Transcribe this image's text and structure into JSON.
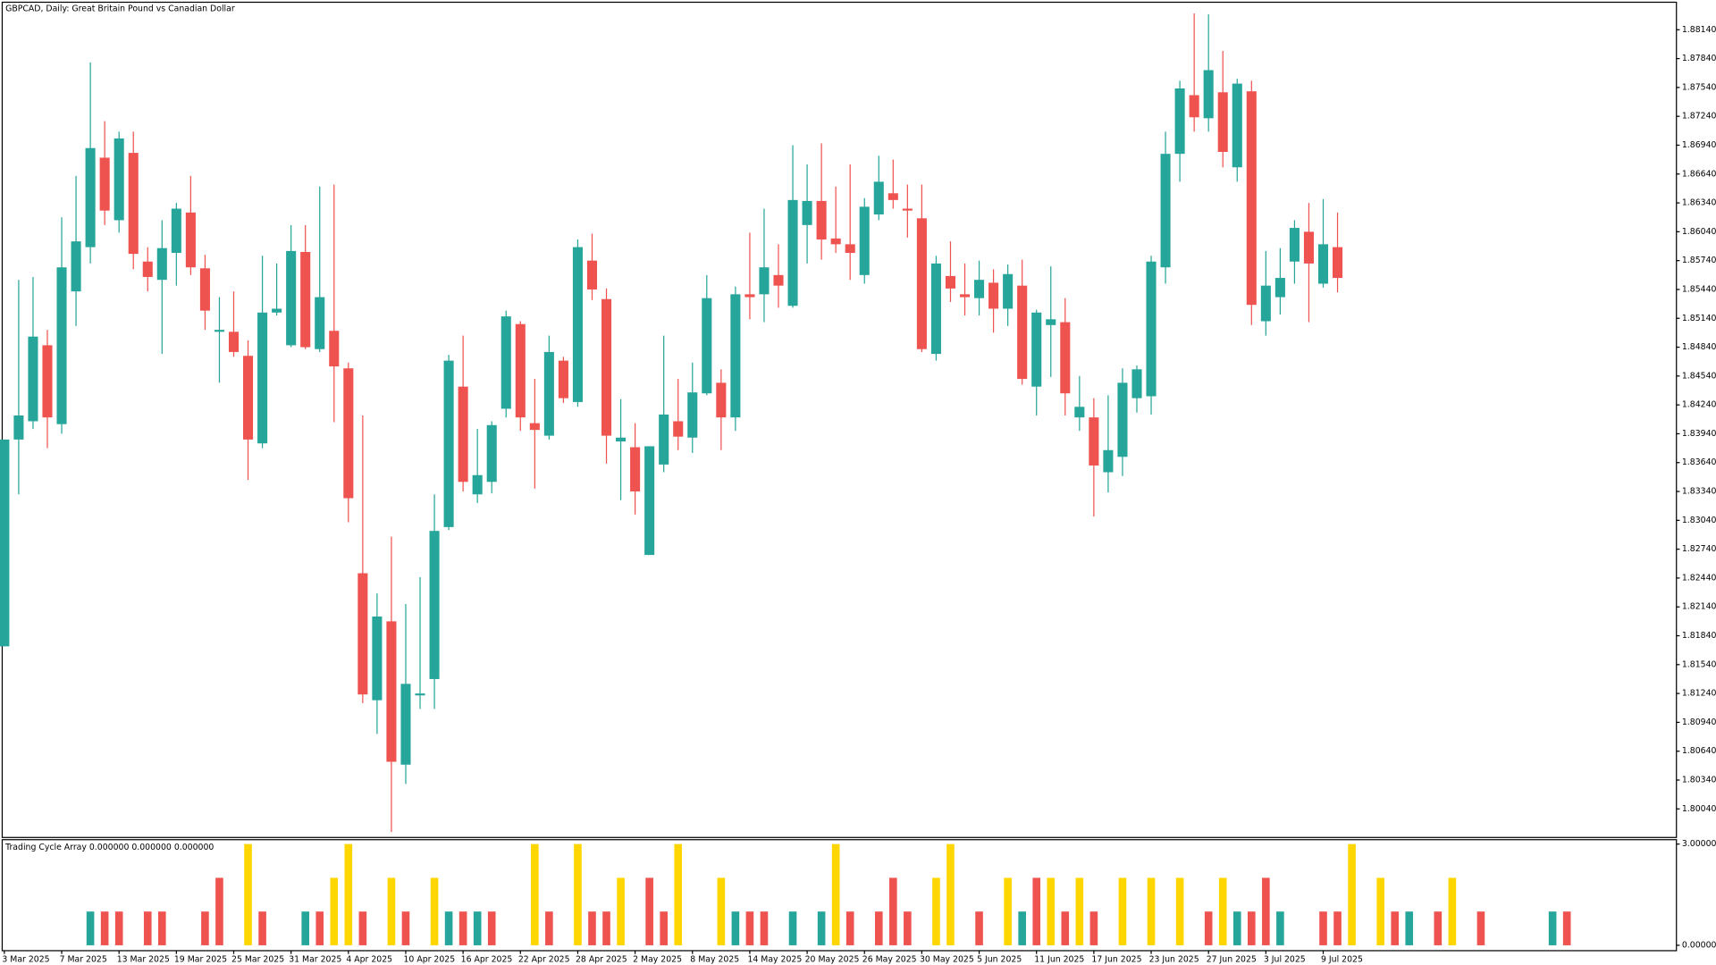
{
  "chart_data": [
    {
      "type": "candlestick",
      "title": "GBPCAD, Daily:  Great Britain Pound vs Canadian Dollar",
      "up_color": "#26a69a",
      "down_color": "#ef5350",
      "open": [
        1.8173,
        1.8388,
        1.8407,
        1.8486,
        1.8404,
        1.8542,
        1.8588,
        1.8681,
        1.8616,
        1.8686,
        1.8573,
        1.8554,
        1.8582,
        1.8624,
        1.8566,
        1.85,
        1.85,
        1.8475,
        1.8384,
        1.852,
        1.8486,
        1.8583,
        1.8482,
        1.8501,
        1.8462,
        1.8249,
        1.8117,
        1.8199,
        1.805,
        1.8122,
        1.8139,
        1.8297,
        1.8443,
        1.8331,
        1.8344,
        1.842,
        1.8508,
        1.8405,
        1.8392,
        1.847,
        1.8427,
        1.8574,
        1.8534,
        1.8386,
        1.838,
        1.8268,
        1.8362,
        1.8407,
        1.839,
        1.8436,
        1.8447,
        1.8411,
        1.8539,
        1.8539,
        1.8559,
        1.8527,
        1.8611,
        1.8636,
        1.8597,
        1.8591,
        1.8559,
        1.8622,
        1.8644,
        1.8628,
        1.8618,
        1.8477,
        1.8558,
        1.8539,
        1.8535,
        1.8551,
        1.8524,
        1.8548,
        1.8443,
        1.8507,
        1.851,
        1.8411,
        1.8411,
        1.8354,
        1.837,
        1.8431,
        1.8433,
        1.8567,
        1.8685,
        1.8746,
        1.8722,
        1.8749,
        1.8671,
        1.875,
        1.8511,
        1.8536,
        1.8573,
        1.8604,
        1.855,
        1.8588
      ],
      "high": [
        1.8388,
        1.8554,
        1.8557,
        1.8502,
        1.8619,
        1.8662,
        1.878,
        1.8719,
        1.8708,
        1.8708,
        1.8588,
        1.8616,
        1.8634,
        1.8662,
        1.858,
        1.8536,
        1.8542,
        1.8491,
        1.8579,
        1.8571,
        1.8611,
        1.8611,
        1.8651,
        1.8653,
        1.8468,
        1.8413,
        1.8228,
        1.8287,
        1.8217,
        1.8245,
        1.8331,
        1.8476,
        1.8496,
        1.8399,
        1.8407,
        1.8522,
        1.8511,
        1.8451,
        1.8496,
        1.8474,
        1.8596,
        1.8602,
        1.8545,
        1.843,
        1.8405,
        1.8381,
        1.8496,
        1.8451,
        1.8468,
        1.8559,
        1.8461,
        1.8547,
        1.8603,
        1.8628,
        1.8591,
        1.8694,
        1.8674,
        1.8696,
        1.8651,
        1.8674,
        1.8639,
        1.8683,
        1.8679,
        1.8653,
        1.8653,
        1.8579,
        1.8594,
        1.8571,
        1.8574,
        1.8565,
        1.857,
        1.8575,
        1.8523,
        1.8568,
        1.8535,
        1.8454,
        1.8431,
        1.8434,
        1.8462,
        1.8465,
        1.8579,
        1.8708,
        1.8761,
        1.8831,
        1.883,
        1.8792,
        1.8763,
        1.8761,
        1.8584,
        1.8587,
        1.8616,
        1.8634,
        1.8638,
        1.8624
      ],
      "low": [
        1.8173,
        1.8331,
        1.8399,
        1.8379,
        1.8394,
        1.8506,
        1.8571,
        1.8611,
        1.8603,
        1.8565,
        1.8542,
        1.8477,
        1.8548,
        1.8559,
        1.8502,
        1.8447,
        1.8474,
        1.8346,
        1.8379,
        1.8517,
        1.8484,
        1.8482,
        1.8479,
        1.8406,
        1.8302,
        1.8114,
        1.8082,
        1.798,
        1.803,
        1.8108,
        1.8108,
        1.8294,
        1.8334,
        1.8322,
        1.8332,
        1.8411,
        1.8397,
        1.8337,
        1.8388,
        1.8426,
        1.8422,
        1.8533,
        1.8363,
        1.8325,
        1.831,
        1.8268,
        1.8354,
        1.8377,
        1.8374,
        1.8434,
        1.8377,
        1.8397,
        1.8513,
        1.851,
        1.8525,
        1.8525,
        1.8571,
        1.8575,
        1.8582,
        1.8554,
        1.855,
        1.8616,
        1.8628,
        1.8598,
        1.8479,
        1.847,
        1.8531,
        1.8517,
        1.8517,
        1.8499,
        1.8506,
        1.8445,
        1.8413,
        1.8453,
        1.8413,
        1.8397,
        1.8308,
        1.8333,
        1.835,
        1.8416,
        1.8414,
        1.855,
        1.8656,
        1.8708,
        1.8708,
        1.8671,
        1.8656,
        1.8507,
        1.8496,
        1.8518,
        1.855,
        1.851,
        1.8546,
        1.8541
      ],
      "close": [
        1.8388,
        1.8413,
        1.8495,
        1.8411,
        1.8567,
        1.8594,
        1.8691,
        1.8626,
        1.8701,
        1.8581,
        1.8557,
        1.8587,
        1.8628,
        1.8567,
        1.8522,
        1.8502,
        1.8479,
        1.8388,
        1.852,
        1.8524,
        1.8584,
        1.8484,
        1.8536,
        1.8464,
        1.8327,
        1.8123,
        1.8204,
        1.8053,
        1.8134,
        1.8124,
        1.8293,
        1.847,
        1.8344,
        1.8351,
        1.8403,
        1.8516,
        1.8411,
        1.8398,
        1.8479,
        1.8431,
        1.8588,
        1.8544,
        1.8392,
        1.839,
        1.8334,
        1.8381,
        1.8414,
        1.8391,
        1.8437,
        1.8535,
        1.8411,
        1.8539,
        1.8536,
        1.8567,
        1.8548,
        1.8637,
        1.8636,
        1.8596,
        1.8591,
        1.8582,
        1.863,
        1.8656,
        1.8637,
        1.8626,
        1.8482,
        1.8571,
        1.8545,
        1.8536,
        1.8554,
        1.8524,
        1.856,
        1.8451,
        1.852,
        1.8513,
        1.8436,
        1.8422,
        1.8361,
        1.8377,
        1.8447,
        1.8461,
        1.8573,
        1.8685,
        1.8753,
        1.8723,
        1.8772,
        1.8687,
        1.8758,
        1.8528,
        1.8548,
        1.8556,
        1.8608,
        1.8571,
        1.8591,
        1.8556
      ],
      "xlim": [
        -0.15,
        116.64
      ],
      "xticks": [
        {
          "value": 0,
          "label": "3 Mar 2025"
        },
        {
          "value": 4,
          "label": "7 Mar 2025"
        },
        {
          "value": 8,
          "label": "13 Mar 2025"
        },
        {
          "value": 12,
          "label": "19 Mar 2025"
        },
        {
          "value": 16,
          "label": "25 Mar 2025"
        },
        {
          "value": 20,
          "label": "31 Mar 2025"
        },
        {
          "value": 24,
          "label": "4 Apr 2025"
        },
        {
          "value": 28,
          "label": "10 Apr 2025"
        },
        {
          "value": 32,
          "label": "16 Apr 2025"
        },
        {
          "value": 36,
          "label": "22 Apr 2025"
        },
        {
          "value": 40,
          "label": "28 Apr 2025"
        },
        {
          "value": 44,
          "label": "2 May 2025"
        },
        {
          "value": 48,
          "label": "8 May 2025"
        },
        {
          "value": 52,
          "label": "14 May 2025"
        },
        {
          "value": 56,
          "label": "20 May 2025"
        },
        {
          "value": 60,
          "label": "26 May 2025"
        },
        {
          "value": 64,
          "label": "30 May 2025"
        },
        {
          "value": 68,
          "label": "5 Jun 2025"
        },
        {
          "value": 72,
          "label": "11 Jun 2025"
        },
        {
          "value": 76,
          "label": "17 Jun 2025"
        },
        {
          "value": 80,
          "label": "23 Jun 2025"
        },
        {
          "value": 84,
          "label": "27 Jun 2025"
        },
        {
          "value": 88,
          "label": "3 Jul 2025"
        },
        {
          "value": 92,
          "label": "9 Jul 2025"
        }
      ],
      "ylim": [
        1.79743,
        1.88426
      ],
      "yticks": [
        {
          "value": 1.8814,
          "label": "1.88140"
        },
        {
          "value": 1.8784,
          "label": "1.87840"
        },
        {
          "value": 1.8754,
          "label": "1.87540"
        },
        {
          "value": 1.8724,
          "label": "1.87240"
        },
        {
          "value": 1.8694,
          "label": "1.86940"
        },
        {
          "value": 1.8664,
          "label": "1.86640"
        },
        {
          "value": 1.8634,
          "label": "1.86340"
        },
        {
          "value": 1.8604,
          "label": "1.86040"
        },
        {
          "value": 1.8574,
          "label": "1.85740"
        },
        {
          "value": 1.8544,
          "label": "1.85440"
        },
        {
          "value": 1.8514,
          "label": "1.85140"
        },
        {
          "value": 1.8484,
          "label": "1.84840"
        },
        {
          "value": 1.8454,
          "label": "1.84540"
        },
        {
          "value": 1.8424,
          "label": "1.84240"
        },
        {
          "value": 1.8394,
          "label": "1.83940"
        },
        {
          "value": 1.8364,
          "label": "1.83640"
        },
        {
          "value": 1.8334,
          "label": "1.83340"
        },
        {
          "value": 1.8304,
          "label": "1.83040"
        },
        {
          "value": 1.8274,
          "label": "1.82740"
        },
        {
          "value": 1.8244,
          "label": "1.82440"
        },
        {
          "value": 1.8214,
          "label": "1.82140"
        },
        {
          "value": 1.8184,
          "label": "1.81840"
        },
        {
          "value": 1.8154,
          "label": "1.81540"
        },
        {
          "value": 1.8124,
          "label": "1.81240"
        },
        {
          "value": 1.8094,
          "label": "1.80940"
        },
        {
          "value": 1.8064,
          "label": "1.80640"
        },
        {
          "value": 1.8034,
          "label": "1.80340"
        },
        {
          "value": 1.8004,
          "label": "1.80040"
        }
      ]
    },
    {
      "type": "bar",
      "title": "Trading Cycle Array 0.000000 0.000000 0.000000",
      "x": [
        6,
        7,
        8,
        10,
        11,
        14,
        15,
        17,
        18,
        21,
        22,
        23,
        24,
        25,
        27,
        28,
        30,
        31,
        32,
        33,
        34,
        37,
        38,
        40,
        41,
        42,
        43,
        45,
        46,
        47,
        50,
        51,
        52,
        53,
        55,
        57,
        58,
        59,
        61,
        62,
        63,
        65,
        66,
        68,
        70,
        71,
        72,
        73,
        74,
        75,
        76,
        78,
        80,
        82,
        84,
        85,
        86,
        87,
        88,
        89,
        92,
        93,
        94,
        96,
        97,
        98,
        100,
        101,
        103,
        108,
        109
      ],
      "values": [
        1,
        1,
        1,
        1,
        1,
        1,
        2,
        3,
        1,
        1,
        1,
        2,
        3,
        1,
        2,
        1,
        2,
        1,
        1,
        1,
        1,
        3,
        1,
        3,
        1,
        1,
        2,
        2,
        1,
        3,
        2,
        1,
        1,
        1,
        1,
        1,
        3,
        1,
        1,
        2,
        1,
        2,
        3,
        1,
        2,
        1,
        2,
        2,
        1,
        2,
        1,
        2,
        2,
        2,
        1,
        2,
        1,
        1,
        2,
        1,
        1,
        1,
        3,
        2,
        1,
        1,
        1,
        2,
        1,
        1,
        1
      ],
      "colors": [
        "#26a69a",
        "#ef5350",
        "#ef5350",
        "#ef5350",
        "#ef5350",
        "#ef5350",
        "#ef5350",
        "#ffd600",
        "#ef5350",
        "#26a69a",
        "#ef5350",
        "#ffd600",
        "#ffd600",
        "#ef5350",
        "#ffd600",
        "#ef5350",
        "#ffd600",
        "#26a69a",
        "#ef5350",
        "#26a69a",
        "#ef5350",
        "#ffd600",
        "#ef5350",
        "#ffd600",
        "#ef5350",
        "#ef5350",
        "#ffd600",
        "#ef5350",
        "#ef5350",
        "#ffd600",
        "#ffd600",
        "#26a69a",
        "#ef5350",
        "#ef5350",
        "#26a69a",
        "#26a69a",
        "#ffd600",
        "#ef5350",
        "#ef5350",
        "#ef5350",
        "#ef5350",
        "#ffd600",
        "#ffd600",
        "#ef5350",
        "#ffd600",
        "#26a69a",
        "#ef5350",
        "#ffd600",
        "#ef5350",
        "#ffd600",
        "#ef5350",
        "#ffd600",
        "#ffd600",
        "#ffd600",
        "#ef5350",
        "#ffd600",
        "#26a69a",
        "#ef5350",
        "#ef5350",
        "#26a69a",
        "#ef5350",
        "#ef5350",
        "#ffd600",
        "#ffd600",
        "#ef5350",
        "#26a69a",
        "#ef5350",
        "#ffd600",
        "#ef5350",
        "#26a69a",
        "#ef5350"
      ],
      "xlim": [
        -0.15,
        116.64
      ],
      "ylim": [
        -0.16,
        3.13
      ],
      "yticks": [
        {
          "value": 3,
          "label": "3.000000"
        },
        {
          "value": 0,
          "label": "0.000000"
        }
      ]
    }
  ]
}
